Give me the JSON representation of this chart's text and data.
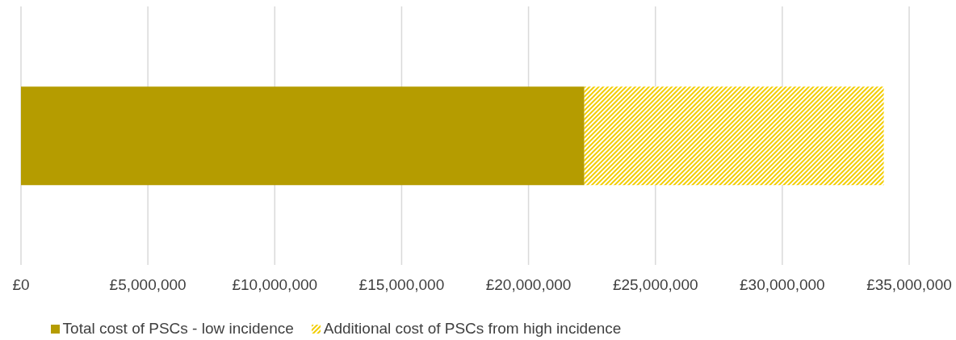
{
  "chart_data": {
    "type": "bar",
    "orientation": "horizontal",
    "stacked": true,
    "categories": [
      null
    ],
    "series": [
      {
        "name": "Total cost of PSCs - low incidence",
        "color": "#b59c00",
        "values": [
          22200000
        ]
      },
      {
        "name": "Additional cost of PSCs from high incidence",
        "color": "#f2cd00",
        "values": [
          11800000
        ]
      }
    ],
    "xlim": [
      0,
      35000000
    ],
    "xticks": [
      {
        "value": 0,
        "label": "£0"
      },
      {
        "value": 5000000,
        "label": "£5,000,000"
      },
      {
        "value": 10000000,
        "label": "£10,000,000"
      },
      {
        "value": 15000000,
        "label": "£15,000,000"
      },
      {
        "value": 20000000,
        "label": "£20,000,000"
      },
      {
        "value": 25000000,
        "label": "£25,000,000"
      },
      {
        "value": 30000000,
        "label": "£30,000,000"
      },
      {
        "value": 35000000,
        "label": "£35,000,000"
      }
    ],
    "grid": "x",
    "legend": "bottom"
  }
}
